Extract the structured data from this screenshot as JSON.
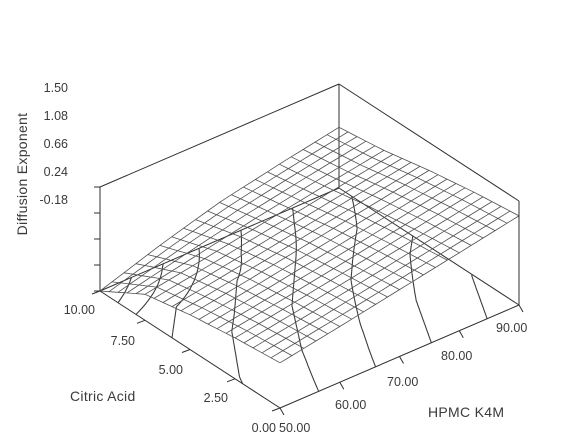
{
  "chart_data": {
    "type": "surface",
    "title": "",
    "zlabel": "Diffusion Exponent",
    "xlabel": "HPMC K4M",
    "ylabel": "Citric Acid",
    "x_ticks": [
      "50.00",
      "60.00",
      "70.00",
      "80.00",
      "90.00"
    ],
    "y_ticks": [
      "0.00",
      "2.50",
      "5.00",
      "7.50",
      "10.00"
    ],
    "z_ticks": [
      "-0.18",
      "0.24",
      "0.66",
      "1.08",
      "1.50"
    ],
    "xlim": [
      50,
      90
    ],
    "ylim": [
      0,
      10
    ],
    "zlim": [
      -0.18,
      1.5
    ],
    "surface_grid": {
      "x": [
        50,
        60,
        70,
        80,
        90
      ],
      "y": [
        0,
        2.5,
        5,
        7.5,
        10
      ],
      "z": [
        [
          0.55,
          0.72,
          0.9,
          1.08,
          1.26
        ],
        [
          0.48,
          0.64,
          0.81,
          0.99,
          1.17
        ],
        [
          0.38,
          0.54,
          0.71,
          0.88,
          1.05
        ],
        [
          0.24,
          0.4,
          0.57,
          0.74,
          0.9
        ],
        [
          -0.18,
          0.14,
          0.42,
          0.62,
          0.8
        ]
      ]
    },
    "contour_at_base": true,
    "grid": false,
    "colors": {
      "surface": "#505050",
      "contours": "#3c3c3c",
      "box": "#2f2f2f",
      "background": "#ffffff"
    }
  }
}
